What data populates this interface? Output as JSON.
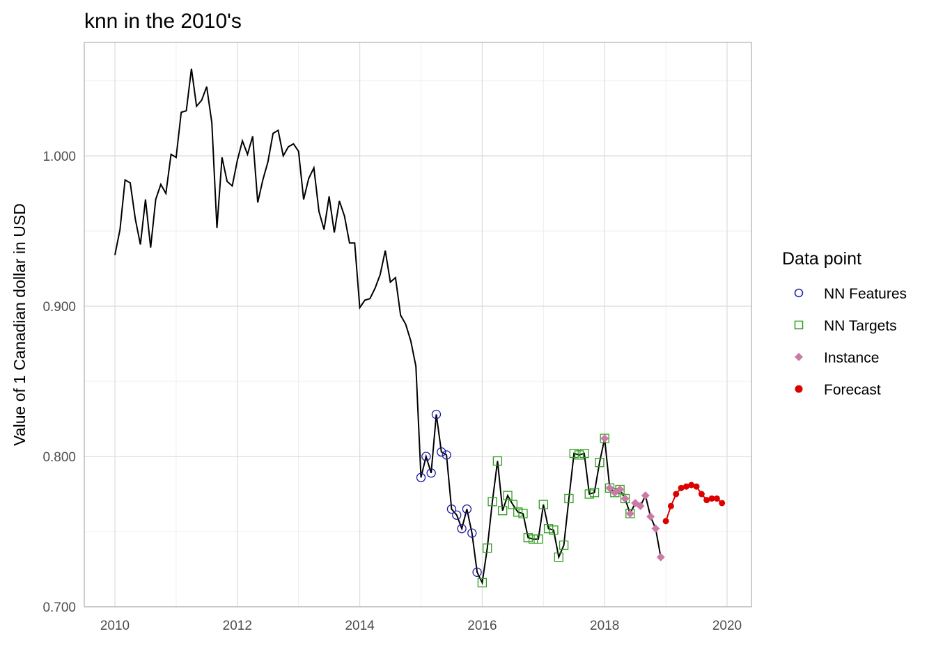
{
  "chart_data": {
    "type": "line",
    "title": "knn in the 2010's",
    "xlabel": "",
    "ylabel": "Value of 1 Canadian dollar in USD",
    "xlim": [
      2009.5,
      2020.4
    ],
    "ylim": [
      0.7,
      1.07
    ],
    "x_ticks": [
      2010,
      2012,
      2014,
      2016,
      2018,
      2020
    ],
    "x_tick_labels": [
      "2010",
      "2012",
      "2014",
      "2016",
      "2018",
      "2020"
    ],
    "y_ticks": [
      0.7,
      0.8,
      0.9,
      1.0
    ],
    "y_tick_labels": [
      "0.700",
      "0.800",
      "0.900",
      "1.000"
    ],
    "y_minor_ticks": [
      0.75,
      0.85,
      0.95,
      1.05
    ],
    "x_minor_ticks": [
      2011,
      2013,
      2015,
      2017,
      2019
    ],
    "grid": true,
    "legend": {
      "title": "Data point",
      "position": "right",
      "entries": [
        {
          "label": "NN Features",
          "color": "#1a1aa0",
          "shape": "open-circle"
        },
        {
          "label": "NN Targets",
          "color": "#2e9e1e",
          "shape": "open-square"
        },
        {
          "label": "Instance",
          "color": "#cc79a7",
          "shape": "diamond"
        },
        {
          "label": "Forecast",
          "color": "#dd0000",
          "shape": "filled-circle"
        }
      ]
    },
    "series": [
      {
        "name": "Data",
        "color": "#000000",
        "x_start": 2010.0,
        "step": 0.0833333,
        "values": [
          0.934,
          0.951,
          0.984,
          0.982,
          0.958,
          0.941,
          0.971,
          0.939,
          0.971,
          0.981,
          0.975,
          1.001,
          0.999,
          1.029,
          1.03,
          1.058,
          1.033,
          1.037,
          1.046,
          1.022,
          0.952,
          0.999,
          0.983,
          0.98,
          0.997,
          1.01,
          1.001,
          1.013,
          0.969,
          0.984,
          0.996,
          1.015,
          1.017,
          1.0,
          1.006,
          1.008,
          1.003,
          0.971,
          0.985,
          0.992,
          0.963,
          0.951,
          0.973,
          0.949,
          0.97,
          0.96,
          0.942,
          0.942,
          0.899,
          0.904,
          0.905,
          0.912,
          0.921,
          0.937,
          0.916,
          0.919,
          0.894,
          0.888,
          0.877,
          0.86,
          0.786,
          0.8,
          0.789,
          0.828,
          0.803,
          0.801,
          0.765,
          0.761,
          0.752,
          0.765,
          0.749,
          0.723,
          0.716,
          0.739,
          0.77,
          0.797,
          0.764,
          0.774,
          0.768,
          0.763,
          0.762,
          0.746,
          0.745,
          0.745,
          0.768,
          0.752,
          0.751,
          0.733,
          0.741,
          0.772,
          0.802,
          0.801,
          0.802,
          0.775,
          0.776,
          0.796,
          0.812,
          0.779,
          0.776,
          0.778,
          0.772,
          0.762,
          0.769,
          0.767,
          0.774,
          0.76,
          0.752,
          0.733
        ]
      },
      {
        "name": "NN Features",
        "color": "#1a1aa0",
        "indices": [
          60,
          61,
          62,
          63,
          64,
          65,
          66,
          67,
          68,
          69,
          70,
          71
        ]
      },
      {
        "name": "NN Targets",
        "color": "#2e9e1e",
        "indices": [
          72,
          73,
          74,
          75,
          76,
          77,
          78,
          79,
          80,
          81,
          82,
          83,
          84,
          85,
          86,
          87,
          88,
          89,
          90,
          91,
          92,
          93,
          94,
          95,
          96,
          97,
          98,
          99,
          100,
          101
        ]
      },
      {
        "name": "Instance",
        "color": "#cc79a7",
        "indices": [
          96,
          97,
          98,
          99,
          100,
          101,
          102,
          103,
          104,
          105,
          106,
          107
        ]
      },
      {
        "name": "Forecast",
        "color": "#dd0000",
        "x_start": 2019.0,
        "step": 0.0833333,
        "values": [
          0.757,
          0.767,
          0.775,
          0.779,
          0.78,
          0.781,
          0.78,
          0.775,
          0.771,
          0.772,
          0.772,
          0.769
        ]
      }
    ]
  }
}
